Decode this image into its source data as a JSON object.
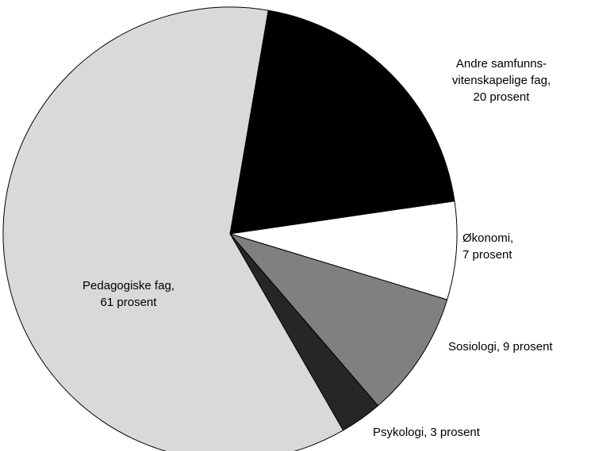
{
  "chart_data": {
    "type": "pie",
    "categories": [
      "Andre samfunns-vitenskapelige fag,",
      "Økonomi,",
      "Sosiologi,",
      "Psykologi,",
      "Pedagogiske fag,"
    ],
    "values": [
      20,
      7,
      9,
      3,
      61
    ],
    "value_labels": [
      "20 prosent",
      "7 prosent",
      "9 prosent",
      "3 prosent",
      "61 prosent"
    ],
    "colors": [
      "#000000",
      "#ffffff",
      "#808080",
      "#262626",
      "#d9d9d9"
    ]
  }
}
